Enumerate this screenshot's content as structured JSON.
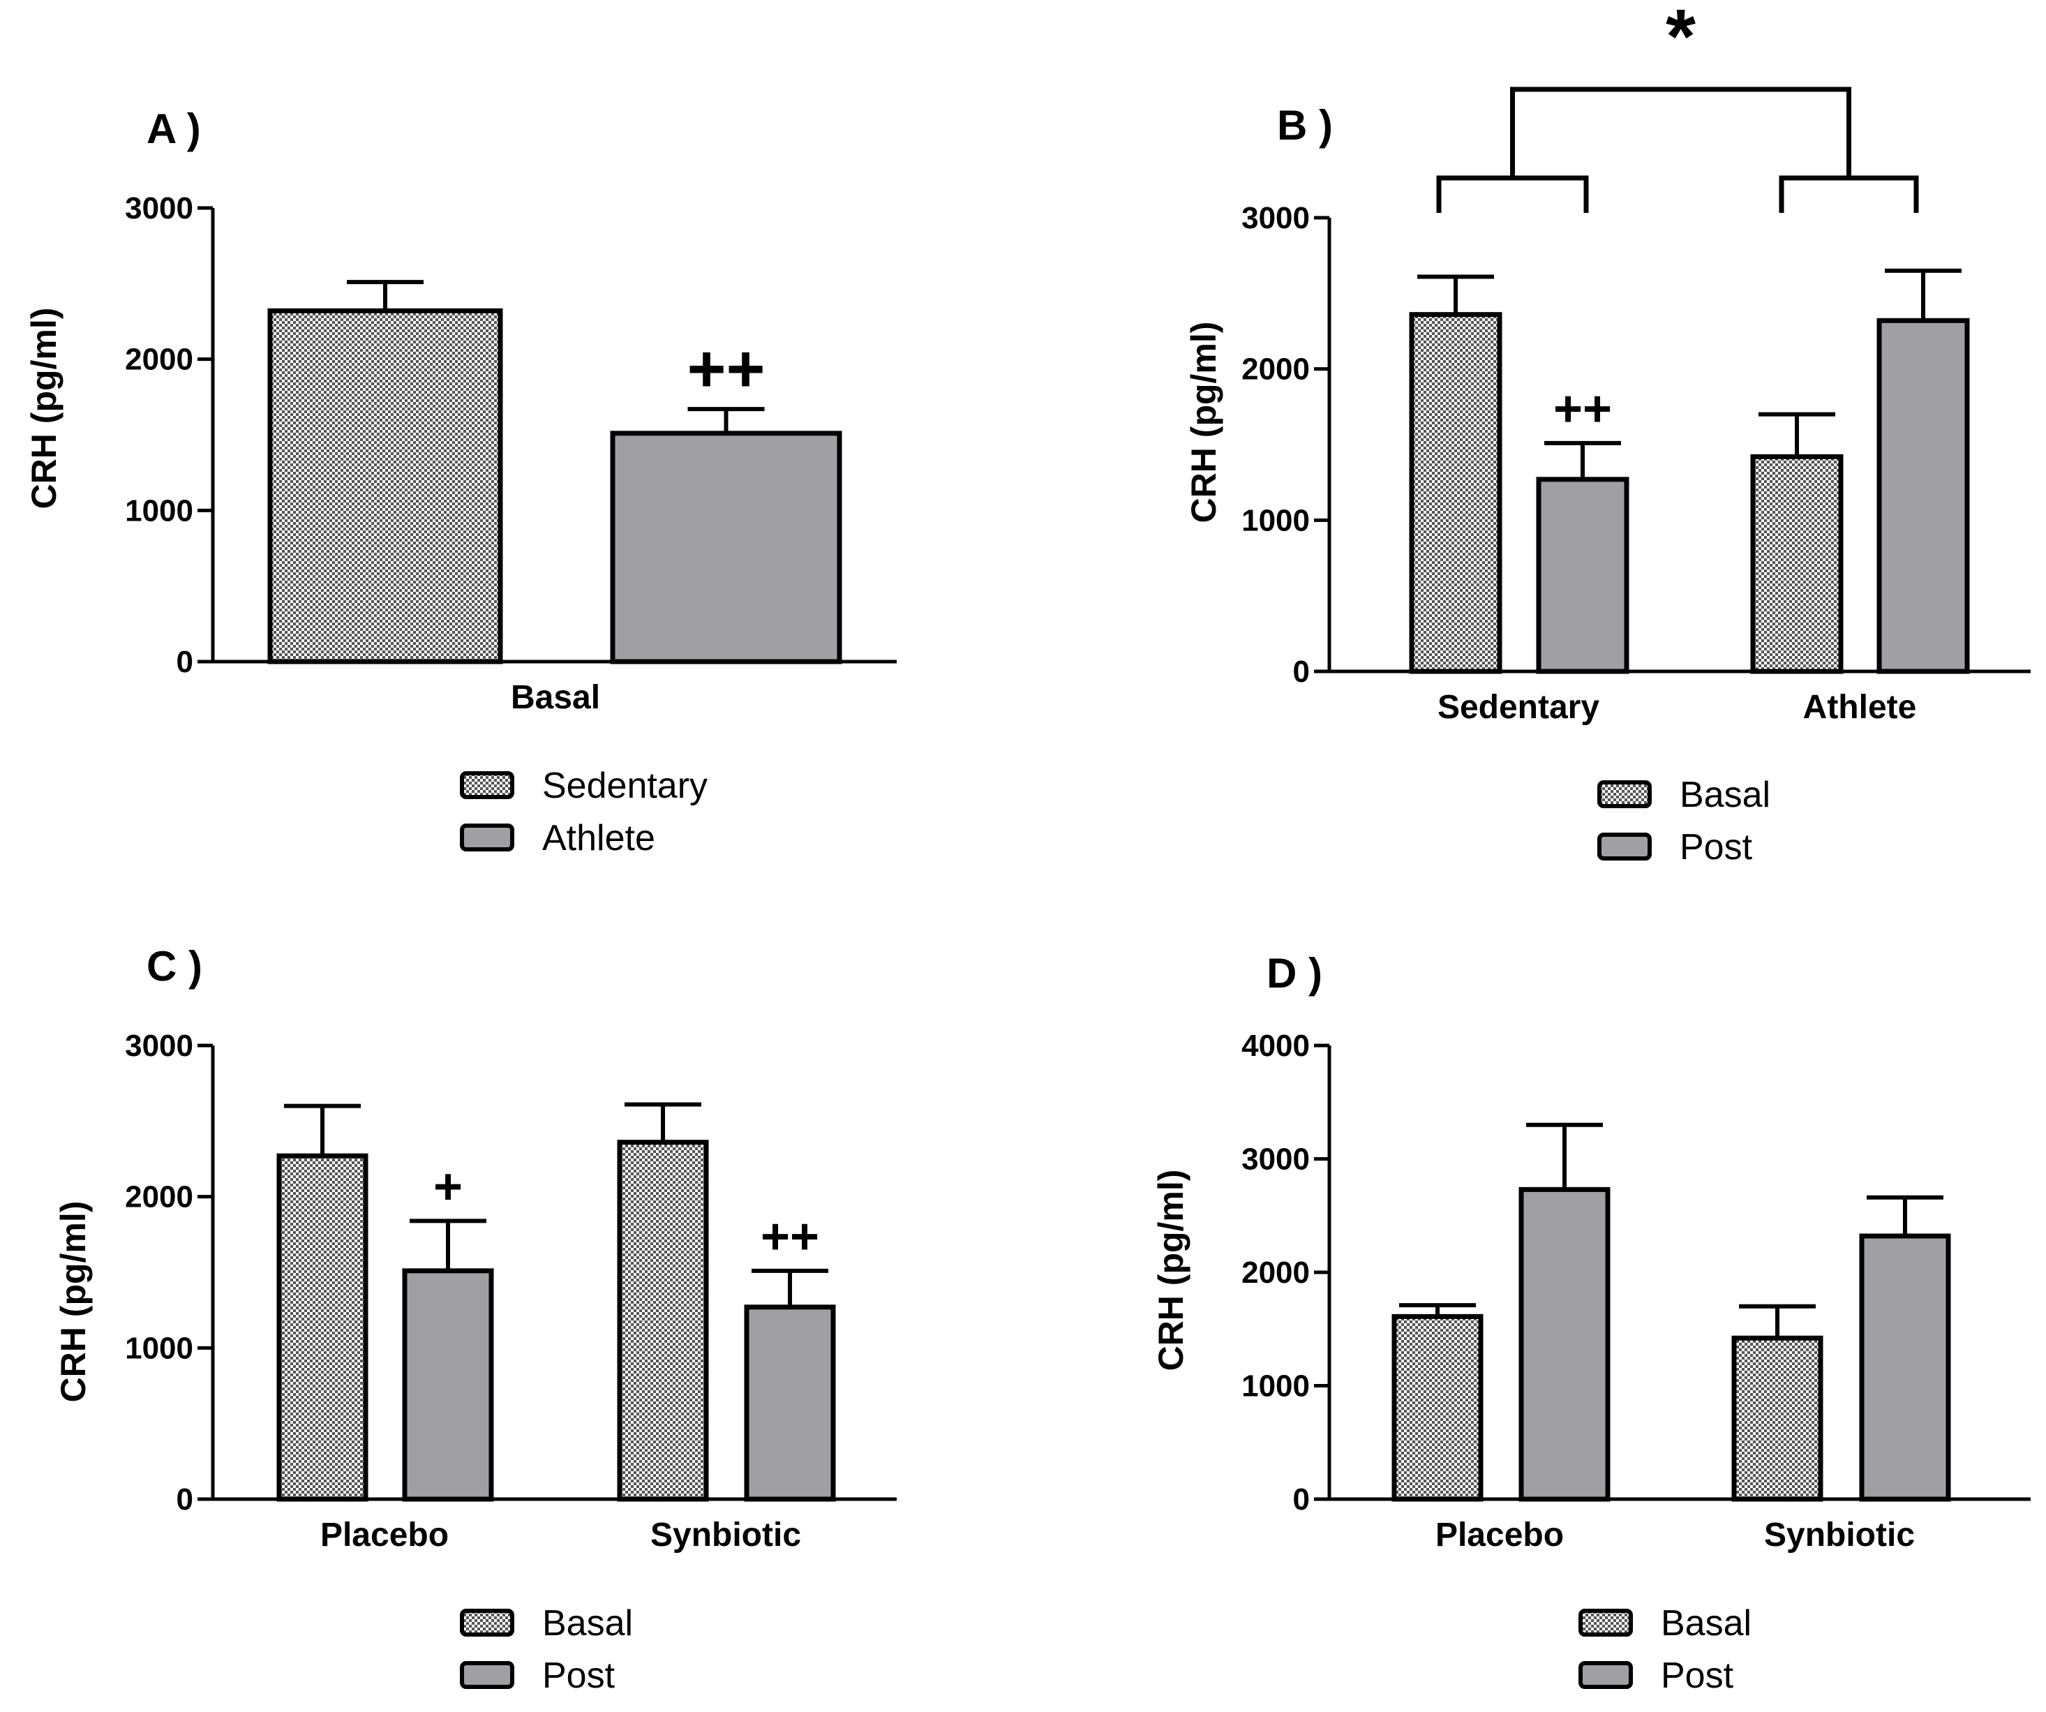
{
  "colors": {
    "pattern": "#a8a8a8",
    "post": "#a0a0a4",
    "ink": "#000000"
  },
  "chart_data": [
    {
      "panel": "A )",
      "type": "bar",
      "categories": [
        "Basal"
      ],
      "series": [
        {
          "name": "Sedentary",
          "fill": "pattern",
          "values": [
            2320
          ],
          "errors": [
            190
          ]
        },
        {
          "name": "Athlete",
          "fill": "solid",
          "values": [
            1510
          ],
          "errors": [
            160
          ]
        }
      ],
      "ylabel": "CRH (pg/ml)",
      "ylim": [
        0,
        3000
      ],
      "yticks": [
        "0",
        "1000",
        "2000",
        "3000"
      ],
      "annotations": [
        {
          "text": "++",
          "series": 1,
          "category": 0
        }
      ],
      "legend": [
        "Sedentary",
        "Athlete"
      ]
    },
    {
      "panel": "B )",
      "type": "bar",
      "categories": [
        "Sedentary",
        "Athlete"
      ],
      "series": [
        {
          "name": "Basal",
          "fill": "pattern",
          "values": [
            2360,
            1420
          ],
          "errors": [
            250,
            280
          ]
        },
        {
          "name": "Post",
          "fill": "solid",
          "values": [
            1270,
            2320
          ],
          "errors": [
            240,
            330
          ]
        }
      ],
      "ylabel": "CRH (pg/ml)",
      "ylim": [
        0,
        3000
      ],
      "yticks": [
        "0",
        "1000",
        "2000",
        "3000"
      ],
      "annotations": [
        {
          "text": "++",
          "series": 1,
          "category": 0
        }
      ],
      "bracket": {
        "text": "*"
      },
      "legend": [
        "Basal",
        "Post"
      ]
    },
    {
      "panel": "C )",
      "type": "bar",
      "categories": [
        "Placebo",
        "Synbiotic"
      ],
      "series": [
        {
          "name": "Basal",
          "fill": "pattern",
          "values": [
            2270,
            2360
          ],
          "errors": [
            330,
            250
          ]
        },
        {
          "name": "Post",
          "fill": "solid",
          "values": [
            1510,
            1270
          ],
          "errors": [
            330,
            240
          ]
        }
      ],
      "ylabel": "CRH (pg/ml)",
      "ylim": [
        0,
        3000
      ],
      "yticks": [
        "0",
        "1000",
        "2000",
        "3000"
      ],
      "annotations": [
        {
          "text": "+",
          "series": 1,
          "category": 0
        },
        {
          "text": "++",
          "series": 1,
          "category": 1
        }
      ],
      "legend": [
        "Basal",
        "Post"
      ]
    },
    {
      "panel": "D )",
      "type": "bar",
      "categories": [
        "Placebo",
        "Synbiotic"
      ],
      "series": [
        {
          "name": "Basal",
          "fill": "pattern",
          "values": [
            1610,
            1420
          ],
          "errors": [
            100,
            280
          ]
        },
        {
          "name": "Post",
          "fill": "solid",
          "values": [
            2730,
            2320
          ],
          "errors": [
            570,
            340
          ]
        }
      ],
      "ylabel": "CRH (pg/ml)",
      "ylim": [
        0,
        4000
      ],
      "yticks": [
        "0",
        "1000",
        "2000",
        "3000",
        "4000"
      ],
      "annotations": [],
      "legend": [
        "Basal",
        "Post"
      ]
    }
  ]
}
